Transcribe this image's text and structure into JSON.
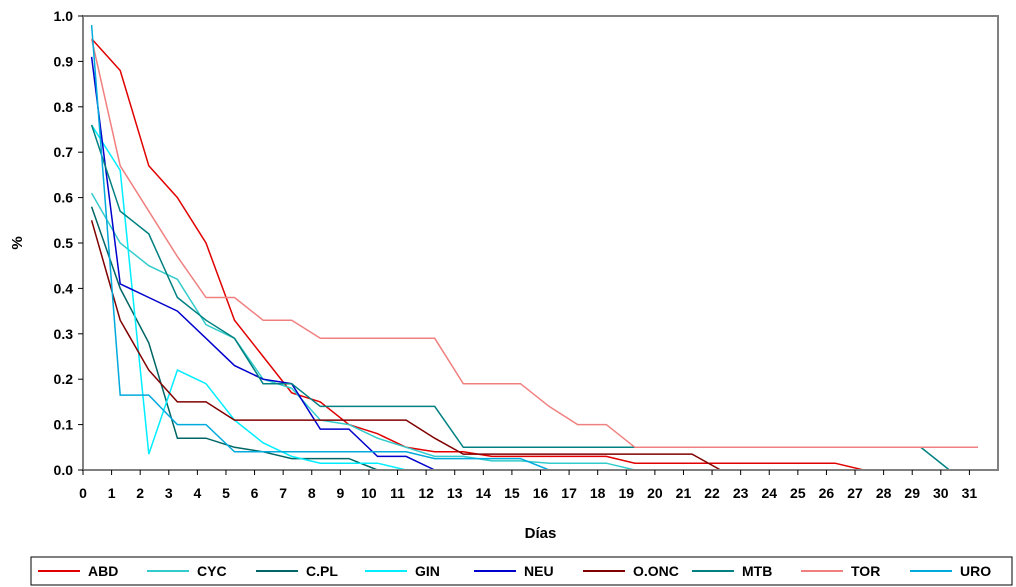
{
  "chart_data": {
    "type": "line",
    "title": "",
    "xlabel": "Días",
    "ylabel": "%",
    "ylim": [
      0,
      1
    ],
    "yticks": [
      "0.0",
      "0.1",
      "0.2",
      "0.3",
      "0.4",
      "0.5",
      "0.6",
      "0.7",
      "0.8",
      "0.9",
      "1.0"
    ],
    "xlim": [
      0,
      32
    ],
    "xticks": [
      "0",
      "1",
      "2",
      "3",
      "4",
      "5",
      "6",
      "7",
      "8",
      "9",
      "10",
      "11",
      "12",
      "13",
      "14",
      "15",
      "16",
      "17",
      "18",
      "19",
      "20",
      "21",
      "22",
      "23",
      "24",
      "25",
      "26",
      "27",
      "28",
      "29",
      "30",
      "31"
    ],
    "grid": false,
    "legend_position": "bottom",
    "series": [
      {
        "name": "ABD",
        "color": "#e00000",
        "x": [
          0.3,
          1.3,
          2.3,
          3.3,
          4.3,
          5.3,
          6.3,
          7.3,
          8.3,
          9.3,
          10.3,
          11.3,
          12.3,
          13.3,
          14.3,
          15.3,
          16.3,
          17.3,
          18.3,
          19.3,
          20.3,
          21.3,
          22.3,
          23.3,
          24.3,
          25.3,
          26.3,
          27.3
        ],
        "y": [
          0.95,
          0.88,
          0.67,
          0.6,
          0.5,
          0.33,
          0.25,
          0.17,
          0.15,
          0.1,
          0.08,
          0.05,
          0.04,
          0.04,
          0.03,
          0.03,
          0.03,
          0.03,
          0.03,
          0.015,
          0.015,
          0.015,
          0.015,
          0.015,
          0.015,
          0.015,
          0.015,
          0.0
        ]
      },
      {
        "name": "CYC",
        "color": "#33cccc",
        "x": [
          0.3,
          1.3,
          2.3,
          3.3,
          4.3,
          5.3,
          6.3,
          7.3,
          8.3,
          9.3,
          10.3,
          11.3,
          12.3,
          13.3,
          14.3,
          15.3,
          16.3,
          17.3,
          18.3,
          19.3
        ],
        "y": [
          0.61,
          0.5,
          0.45,
          0.42,
          0.32,
          0.29,
          0.2,
          0.18,
          0.11,
          0.1,
          0.07,
          0.05,
          0.03,
          0.03,
          0.02,
          0.02,
          0.015,
          0.015,
          0.015,
          0.0
        ]
      },
      {
        "name": "C.PL",
        "color": "#006666",
        "x": [
          0.3,
          1.3,
          2.3,
          3.3,
          4.3,
          5.3,
          6.3,
          7.3,
          8.3,
          9.3,
          10.3
        ],
        "y": [
          0.58,
          0.4,
          0.28,
          0.07,
          0.07,
          0.05,
          0.04,
          0.025,
          0.025,
          0.025,
          0.0
        ]
      },
      {
        "name": "GIN",
        "color": "#00eeff",
        "x": [
          0.3,
          1.3,
          2.3,
          3.3,
          4.3,
          5.3,
          6.3,
          7.3,
          8.3,
          9.3,
          10.3,
          11.3
        ],
        "y": [
          0.76,
          0.66,
          0.035,
          0.22,
          0.19,
          0.11,
          0.06,
          0.03,
          0.015,
          0.015,
          0.015,
          0.0
        ]
      },
      {
        "name": "NEU",
        "color": "#0000cc",
        "x": [
          0.3,
          1.3,
          2.3,
          3.3,
          4.3,
          5.3,
          6.3,
          7.3,
          8.3,
          9.3,
          10.3,
          11.3,
          12.3
        ],
        "y": [
          0.91,
          0.41,
          0.38,
          0.35,
          0.29,
          0.23,
          0.2,
          0.19,
          0.09,
          0.09,
          0.03,
          0.03,
          0.0
        ]
      },
      {
        "name": "O.ONC",
        "color": "#800000",
        "x": [
          0.3,
          1.3,
          2.3,
          3.3,
          4.3,
          5.3,
          6.3,
          7.3,
          8.3,
          9.3,
          10.3,
          11.3,
          12.3,
          13.3,
          14.3,
          15.3,
          16.3,
          17.3,
          18.3,
          19.3,
          20.3,
          21.3,
          22.3
        ],
        "y": [
          0.55,
          0.33,
          0.22,
          0.15,
          0.15,
          0.11,
          0.11,
          0.11,
          0.11,
          0.11,
          0.11,
          0.11,
          0.07,
          0.035,
          0.035,
          0.035,
          0.035,
          0.035,
          0.035,
          0.035,
          0.035,
          0.035,
          0.0
        ]
      },
      {
        "name": "MTB",
        "color": "#008080",
        "x": [
          0.3,
          1.3,
          2.3,
          3.3,
          4.3,
          5.3,
          6.3,
          7.3,
          8.3,
          9.3,
          10.3,
          11.3,
          12.3,
          13.3,
          14.3,
          15.3,
          16.3,
          17.3,
          18.3,
          19.3,
          20.3,
          21.3,
          22.3,
          23.3,
          24.3,
          25.3,
          26.3,
          27.3,
          28.3,
          29.3,
          30.3
        ],
        "y": [
          0.76,
          0.57,
          0.52,
          0.38,
          0.33,
          0.29,
          0.19,
          0.19,
          0.14,
          0.14,
          0.14,
          0.14,
          0.14,
          0.05,
          0.05,
          0.05,
          0.05,
          0.05,
          0.05,
          0.05,
          0.05,
          0.05,
          0.05,
          0.05,
          0.05,
          0.05,
          0.05,
          0.05,
          0.05,
          0.05,
          0.0
        ]
      },
      {
        "name": "TOR",
        "color": "#f08080",
        "x": [
          0.3,
          1.3,
          2.3,
          3.3,
          4.3,
          5.3,
          6.3,
          7.3,
          8.3,
          9.3,
          10.3,
          11.3,
          12.3,
          13.3,
          14.3,
          15.3,
          16.3,
          17.3,
          18.3,
          19.3,
          20.3,
          21.3,
          22.3,
          23.3,
          24.3,
          25.3,
          26.3,
          27.3,
          28.3,
          29.3,
          30.3,
          31.3
        ],
        "y": [
          0.95,
          0.67,
          0.57,
          0.47,
          0.38,
          0.38,
          0.33,
          0.33,
          0.29,
          0.29,
          0.29,
          0.29,
          0.29,
          0.19,
          0.19,
          0.19,
          0.14,
          0.1,
          0.1,
          0.05,
          0.05,
          0.05,
          0.05,
          0.05,
          0.05,
          0.05,
          0.05,
          0.05,
          0.05,
          0.05,
          0.05,
          0.05
        ]
      },
      {
        "name": "URO",
        "color": "#00aadd",
        "x": [
          0.3,
          1.3,
          2.3,
          3.3,
          4.3,
          5.3,
          6.3,
          7.3,
          8.3,
          9.3,
          10.3,
          11.3,
          12.3,
          13.3,
          14.3,
          15.3,
          16.3
        ],
        "y": [
          0.98,
          0.165,
          0.165,
          0.1,
          0.1,
          0.04,
          0.04,
          0.04,
          0.04,
          0.04,
          0.04,
          0.04,
          0.025,
          0.025,
          0.025,
          0.025,
          0.0
        ]
      }
    ]
  }
}
